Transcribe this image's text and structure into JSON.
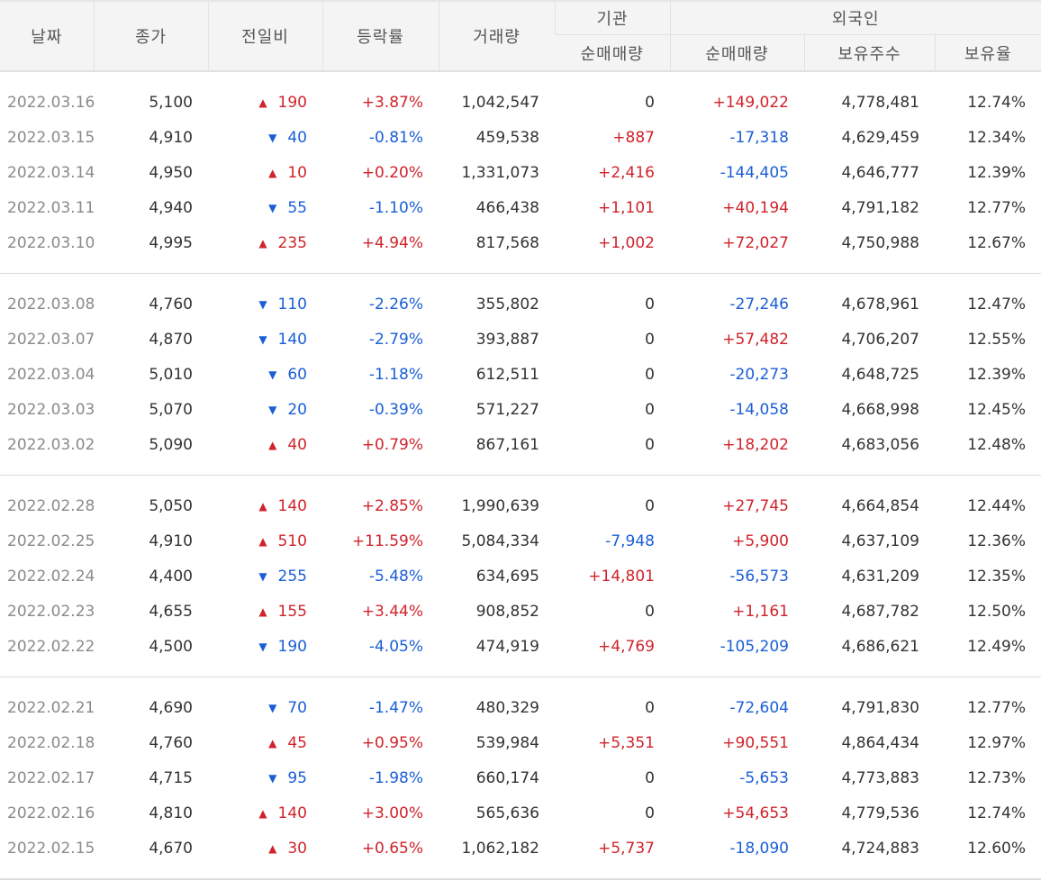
{
  "headers": {
    "date": "날짜",
    "close": "종가",
    "diff": "전일비",
    "rate": "등락률",
    "volume": "거래량",
    "institution": "기관",
    "foreign": "외국인",
    "inst_net": "순매매량",
    "foreign_net": "순매매량",
    "foreign_hold": "보유주수",
    "foreign_ratio": "보유율"
  },
  "colors": {
    "up": "#d0232b",
    "down": "#1a5ed6",
    "neutral": "#333333",
    "date": "#8a8a8a"
  },
  "icons": {
    "up": "triangle-up-icon",
    "down": "triangle-down-icon"
  },
  "groups": [
    {
      "rows": [
        {
          "date": "2022.03.16",
          "close": "5,100",
          "dir": "up",
          "arrow": "▲",
          "diff": "190",
          "rate": "+3.87%",
          "volume": "1,042,547",
          "inst": "0",
          "fnet": "+149,022",
          "fhold": "4,778,481",
          "fratio": "12.74%"
        },
        {
          "date": "2022.03.15",
          "close": "4,910",
          "dir": "down",
          "arrow": "▼",
          "diff": "40",
          "rate": "-0.81%",
          "volume": "459,538",
          "inst": "+887",
          "fnet": "-17,318",
          "fhold": "4,629,459",
          "fratio": "12.34%"
        },
        {
          "date": "2022.03.14",
          "close": "4,950",
          "dir": "up",
          "arrow": "▲",
          "diff": "10",
          "rate": "+0.20%",
          "volume": "1,331,073",
          "inst": "+2,416",
          "fnet": "-144,405",
          "fhold": "4,646,777",
          "fratio": "12.39%"
        },
        {
          "date": "2022.03.11",
          "close": "4,940",
          "dir": "down",
          "arrow": "▼",
          "diff": "55",
          "rate": "-1.10%",
          "volume": "466,438",
          "inst": "+1,101",
          "fnet": "+40,194",
          "fhold": "4,791,182",
          "fratio": "12.77%"
        },
        {
          "date": "2022.03.10",
          "close": "4,995",
          "dir": "up",
          "arrow": "▲",
          "diff": "235",
          "rate": "+4.94%",
          "volume": "817,568",
          "inst": "+1,002",
          "fnet": "+72,027",
          "fhold": "4,750,988",
          "fratio": "12.67%"
        }
      ]
    },
    {
      "rows": [
        {
          "date": "2022.03.08",
          "close": "4,760",
          "dir": "down",
          "arrow": "▼",
          "diff": "110",
          "rate": "-2.26%",
          "volume": "355,802",
          "inst": "0",
          "fnet": "-27,246",
          "fhold": "4,678,961",
          "fratio": "12.47%"
        },
        {
          "date": "2022.03.07",
          "close": "4,870",
          "dir": "down",
          "arrow": "▼",
          "diff": "140",
          "rate": "-2.79%",
          "volume": "393,887",
          "inst": "0",
          "fnet": "+57,482",
          "fhold": "4,706,207",
          "fratio": "12.55%"
        },
        {
          "date": "2022.03.04",
          "close": "5,010",
          "dir": "down",
          "arrow": "▼",
          "diff": "60",
          "rate": "-1.18%",
          "volume": "612,511",
          "inst": "0",
          "fnet": "-20,273",
          "fhold": "4,648,725",
          "fratio": "12.39%"
        },
        {
          "date": "2022.03.03",
          "close": "5,070",
          "dir": "down",
          "arrow": "▼",
          "diff": "20",
          "rate": "-0.39%",
          "volume": "571,227",
          "inst": "0",
          "fnet": "-14,058",
          "fhold": "4,668,998",
          "fratio": "12.45%"
        },
        {
          "date": "2022.03.02",
          "close": "5,090",
          "dir": "up",
          "arrow": "▲",
          "diff": "40",
          "rate": "+0.79%",
          "volume": "867,161",
          "inst": "0",
          "fnet": "+18,202",
          "fhold": "4,683,056",
          "fratio": "12.48%"
        }
      ]
    },
    {
      "rows": [
        {
          "date": "2022.02.28",
          "close": "5,050",
          "dir": "up",
          "arrow": "▲",
          "diff": "140",
          "rate": "+2.85%",
          "volume": "1,990,639",
          "inst": "0",
          "fnet": "+27,745",
          "fhold": "4,664,854",
          "fratio": "12.44%"
        },
        {
          "date": "2022.02.25",
          "close": "4,910",
          "dir": "up",
          "arrow": "▲",
          "diff": "510",
          "rate": "+11.59%",
          "volume": "5,084,334",
          "inst": "-7,948",
          "fnet": "+5,900",
          "fhold": "4,637,109",
          "fratio": "12.36%"
        },
        {
          "date": "2022.02.24",
          "close": "4,400",
          "dir": "down",
          "arrow": "▼",
          "diff": "255",
          "rate": "-5.48%",
          "volume": "634,695",
          "inst": "+14,801",
          "fnet": "-56,573",
          "fhold": "4,631,209",
          "fratio": "12.35%"
        },
        {
          "date": "2022.02.23",
          "close": "4,655",
          "dir": "up",
          "arrow": "▲",
          "diff": "155",
          "rate": "+3.44%",
          "volume": "908,852",
          "inst": "0",
          "fnet": "+1,161",
          "fhold": "4,687,782",
          "fratio": "12.50%"
        },
        {
          "date": "2022.02.22",
          "close": "4,500",
          "dir": "down",
          "arrow": "▼",
          "diff": "190",
          "rate": "-4.05%",
          "volume": "474,919",
          "inst": "+4,769",
          "fnet": "-105,209",
          "fhold": "4,686,621",
          "fratio": "12.49%"
        }
      ]
    },
    {
      "rows": [
        {
          "date": "2022.02.21",
          "close": "4,690",
          "dir": "down",
          "arrow": "▼",
          "diff": "70",
          "rate": "-1.47%",
          "volume": "480,329",
          "inst": "0",
          "fnet": "-72,604",
          "fhold": "4,791,830",
          "fratio": "12.77%"
        },
        {
          "date": "2022.02.18",
          "close": "4,760",
          "dir": "up",
          "arrow": "▲",
          "diff": "45",
          "rate": "+0.95%",
          "volume": "539,984",
          "inst": "+5,351",
          "fnet": "+90,551",
          "fhold": "4,864,434",
          "fratio": "12.97%"
        },
        {
          "date": "2022.02.17",
          "close": "4,715",
          "dir": "down",
          "arrow": "▼",
          "diff": "95",
          "rate": "-1.98%",
          "volume": "660,174",
          "inst": "0",
          "fnet": "-5,653",
          "fhold": "4,773,883",
          "fratio": "12.73%"
        },
        {
          "date": "2022.02.16",
          "close": "4,810",
          "dir": "up",
          "arrow": "▲",
          "diff": "140",
          "rate": "+3.00%",
          "volume": "565,636",
          "inst": "0",
          "fnet": "+54,653",
          "fhold": "4,779,536",
          "fratio": "12.74%"
        },
        {
          "date": "2022.02.15",
          "close": "4,670",
          "dir": "up",
          "arrow": "▲",
          "diff": "30",
          "rate": "+0.65%",
          "volume": "1,062,182",
          "inst": "+5,737",
          "fnet": "-18,090",
          "fhold": "4,724,883",
          "fratio": "12.60%"
        }
      ]
    }
  ]
}
